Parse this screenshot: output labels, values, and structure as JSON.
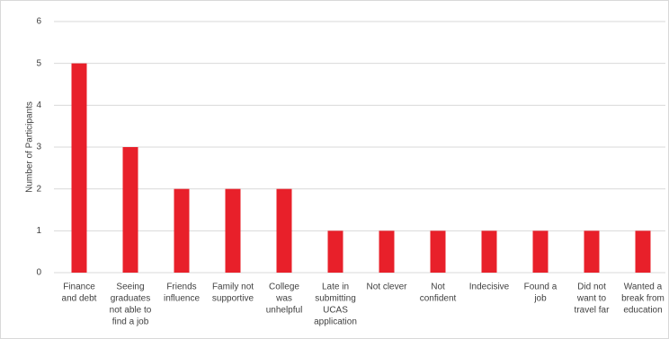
{
  "chart_data": {
    "type": "bar",
    "y_label": "Number of Participants",
    "categories": [
      [
        "Finance",
        "and debt"
      ],
      [
        "Seeing",
        "graduates",
        "not able to",
        "find a job"
      ],
      [
        "Friends",
        "influence"
      ],
      [
        "Family not",
        "supportive"
      ],
      [
        "College",
        "was",
        "unhelpful"
      ],
      [
        "Late in",
        "submitting",
        "UCAS",
        "application"
      ],
      [
        "Not clever"
      ],
      [
        "Not",
        "confident"
      ],
      [
        "Indecisive"
      ],
      [
        "Found a",
        "job"
      ],
      [
        "Did not",
        "want to",
        "travel far"
      ],
      [
        "Wanted a",
        "break from",
        "education"
      ]
    ],
    "values": [
      5,
      3,
      2,
      2,
      2,
      1,
      1,
      1,
      1,
      1,
      1,
      1
    ],
    "color": "#e8202a",
    "ylim": [
      0,
      6
    ],
    "yticks": [
      0,
      1,
      2,
      3,
      4,
      5,
      6
    ],
    "grid": true
  }
}
